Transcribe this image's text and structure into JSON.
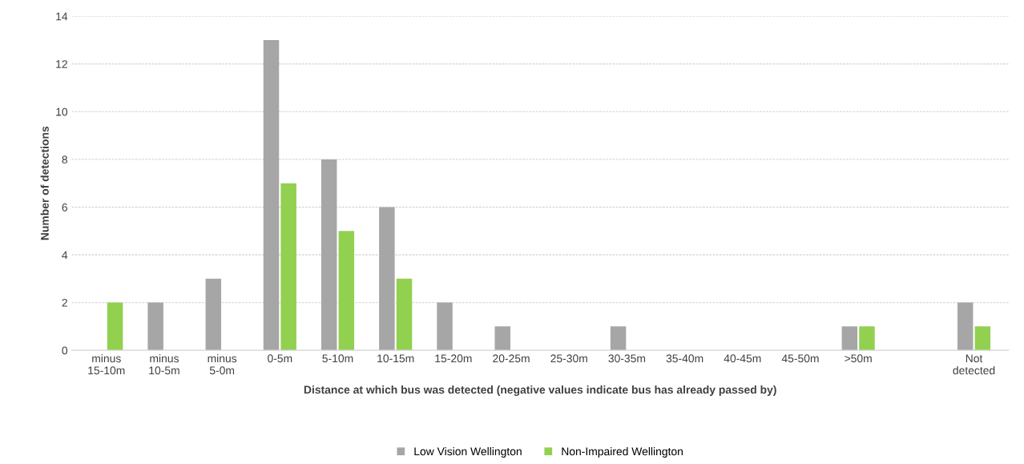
{
  "chart_data": {
    "type": "bar",
    "xlabel": "Distance at which bus was detected (negative values indicate bus has already passed by)",
    "ylabel": "Number of detections",
    "categories": [
      "minus 15-10m",
      "minus 10-5m",
      "minus 5-0m",
      "0-5m",
      "5-10m",
      "10-15m",
      "15-20m",
      "20-25m",
      "25-30m",
      "30-35m",
      "35-40m",
      "40-45m",
      "45-50m",
      ">50m",
      null,
      "Not detected"
    ],
    "series": [
      {
        "name": "Low Vision Wellington",
        "color": "#a6a6a6",
        "values": [
          0,
          2,
          3,
          13,
          8,
          6,
          2,
          1,
          0,
          1,
          0,
          0,
          0,
          1,
          null,
          2
        ]
      },
      {
        "name": "Non-Impaired Wellington",
        "color": "#92d050",
        "values": [
          2,
          0,
          0,
          7,
          5,
          3,
          0,
          0,
          0,
          0,
          0,
          0,
          0,
          1,
          null,
          1
        ]
      }
    ],
    "ylim": [
      0,
      14
    ],
    "yticks": [
      0,
      2,
      4,
      6,
      8,
      10,
      12,
      14
    ],
    "grid": "y",
    "legend": "bottom"
  }
}
